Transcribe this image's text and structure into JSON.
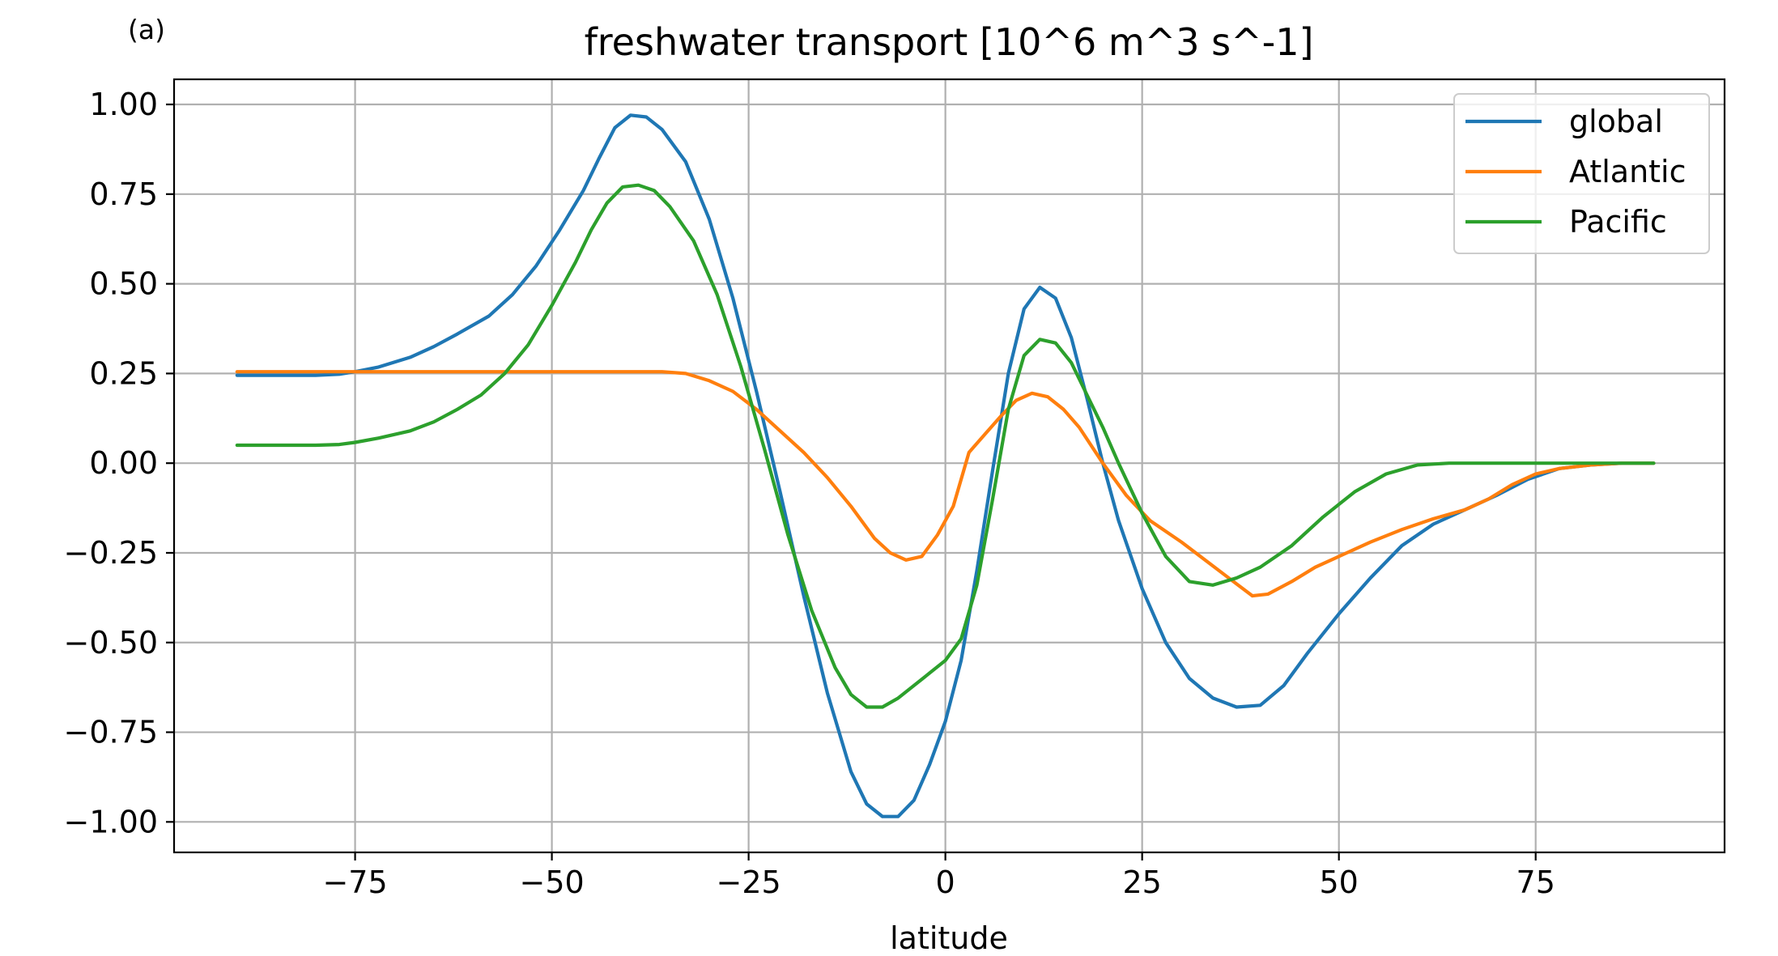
{
  "chart_data": {
    "type": "line",
    "panel_label": "(a)",
    "title": "freshwater transport [10^6 m^3 s^-1]",
    "xlabel": "latitude",
    "ylabel": "",
    "xlim": [
      -98,
      99
    ],
    "ylim": [
      -1.085,
      1.07
    ],
    "xticks": [
      -75,
      -50,
      -25,
      0,
      25,
      50,
      75
    ],
    "xtick_labels": [
      "−75",
      "−50",
      "−25",
      "0",
      "25",
      "50",
      "75"
    ],
    "yticks": [
      1.0,
      0.75,
      0.5,
      0.25,
      0.0,
      -0.25,
      -0.5,
      -0.75,
      -1.0
    ],
    "ytick_labels": [
      "1.00",
      "0.75",
      "0.50",
      "0.25",
      "0.00",
      "−0.25",
      "−0.50",
      "−0.75",
      "−1.00"
    ],
    "grid": true,
    "legend_position": "top-right",
    "series": [
      {
        "name": "global",
        "color": "#1f77b4",
        "points": [
          [
            -90,
            0.245
          ],
          [
            -85,
            0.245
          ],
          [
            -80,
            0.245
          ],
          [
            -77,
            0.248
          ],
          [
            -75,
            0.255
          ],
          [
            -72,
            0.268
          ],
          [
            -68,
            0.295
          ],
          [
            -65,
            0.325
          ],
          [
            -62,
            0.36
          ],
          [
            -58,
            0.41
          ],
          [
            -55,
            0.47
          ],
          [
            -52,
            0.55
          ],
          [
            -49,
            0.65
          ],
          [
            -46,
            0.76
          ],
          [
            -44,
            0.85
          ],
          [
            -42,
            0.935
          ],
          [
            -40,
            0.97
          ],
          [
            -38,
            0.965
          ],
          [
            -36,
            0.93
          ],
          [
            -33,
            0.84
          ],
          [
            -30,
            0.68
          ],
          [
            -27,
            0.46
          ],
          [
            -24,
            0.2
          ],
          [
            -21,
            -0.08
          ],
          [
            -18,
            -0.37
          ],
          [
            -15,
            -0.64
          ],
          [
            -12,
            -0.86
          ],
          [
            -10,
            -0.95
          ],
          [
            -8,
            -0.985
          ],
          [
            -6,
            -0.985
          ],
          [
            -4,
            -0.94
          ],
          [
            -2,
            -0.84
          ],
          [
            0,
            -0.72
          ],
          [
            2,
            -0.55
          ],
          [
            4,
            -0.3
          ],
          [
            6,
            -0.02
          ],
          [
            8,
            0.25
          ],
          [
            10,
            0.43
          ],
          [
            12,
            0.49
          ],
          [
            14,
            0.46
          ],
          [
            16,
            0.35
          ],
          [
            18,
            0.18
          ],
          [
            20,
            0.0
          ],
          [
            22,
            -0.16
          ],
          [
            25,
            -0.35
          ],
          [
            28,
            -0.5
          ],
          [
            31,
            -0.6
          ],
          [
            34,
            -0.655
          ],
          [
            37,
            -0.68
          ],
          [
            40,
            -0.675
          ],
          [
            43,
            -0.62
          ],
          [
            46,
            -0.53
          ],
          [
            50,
            -0.42
          ],
          [
            54,
            -0.32
          ],
          [
            58,
            -0.23
          ],
          [
            62,
            -0.17
          ],
          [
            66,
            -0.13
          ],
          [
            70,
            -0.09
          ],
          [
            74,
            -0.045
          ],
          [
            78,
            -0.015
          ],
          [
            82,
            -0.005
          ],
          [
            86,
            0.0
          ],
          [
            90,
            0.0
          ]
        ]
      },
      {
        "name": "Atlantic",
        "color": "#ff7f0e",
        "points": [
          [
            -90,
            0.255
          ],
          [
            -80,
            0.255
          ],
          [
            -70,
            0.255
          ],
          [
            -60,
            0.255
          ],
          [
            -50,
            0.255
          ],
          [
            -40,
            0.255
          ],
          [
            -36,
            0.255
          ],
          [
            -33,
            0.25
          ],
          [
            -30,
            0.23
          ],
          [
            -27,
            0.2
          ],
          [
            -24,
            0.15
          ],
          [
            -21,
            0.09
          ],
          [
            -18,
            0.03
          ],
          [
            -15,
            -0.04
          ],
          [
            -12,
            -0.12
          ],
          [
            -9,
            -0.21
          ],
          [
            -7,
            -0.25
          ],
          [
            -5,
            -0.27
          ],
          [
            -3,
            -0.26
          ],
          [
            -1,
            -0.2
          ],
          [
            1,
            -0.12
          ],
          [
            3,
            0.03
          ],
          [
            5,
            0.08
          ],
          [
            7,
            0.13
          ],
          [
            9,
            0.175
          ],
          [
            11,
            0.195
          ],
          [
            13,
            0.185
          ],
          [
            15,
            0.15
          ],
          [
            17,
            0.1
          ],
          [
            20,
            0.0
          ],
          [
            23,
            -0.09
          ],
          [
            26,
            -0.16
          ],
          [
            30,
            -0.22
          ],
          [
            33,
            -0.27
          ],
          [
            36,
            -0.32
          ],
          [
            39,
            -0.37
          ],
          [
            41,
            -0.365
          ],
          [
            44,
            -0.33
          ],
          [
            47,
            -0.29
          ],
          [
            50,
            -0.26
          ],
          [
            54,
            -0.22
          ],
          [
            58,
            -0.185
          ],
          [
            62,
            -0.155
          ],
          [
            66,
            -0.13
          ],
          [
            69,
            -0.1
          ],
          [
            72,
            -0.06
          ],
          [
            75,
            -0.03
          ],
          [
            78,
            -0.015
          ],
          [
            82,
            -0.005
          ],
          [
            86,
            0.0
          ],
          [
            90,
            0.0
          ]
        ]
      },
      {
        "name": "Pacific",
        "color": "#2ca02c",
        "points": [
          [
            -90,
            0.05
          ],
          [
            -85,
            0.05
          ],
          [
            -80,
            0.05
          ],
          [
            -77,
            0.052
          ],
          [
            -75,
            0.058
          ],
          [
            -72,
            0.07
          ],
          [
            -68,
            0.09
          ],
          [
            -65,
            0.115
          ],
          [
            -62,
            0.15
          ],
          [
            -59,
            0.19
          ],
          [
            -56,
            0.25
          ],
          [
            -53,
            0.33
          ],
          [
            -50,
            0.44
          ],
          [
            -47,
            0.56
          ],
          [
            -45,
            0.65
          ],
          [
            -43,
            0.725
          ],
          [
            -41,
            0.77
          ],
          [
            -39,
            0.775
          ],
          [
            -37,
            0.76
          ],
          [
            -35,
            0.715
          ],
          [
            -32,
            0.62
          ],
          [
            -29,
            0.47
          ],
          [
            -26,
            0.27
          ],
          [
            -23,
            0.04
          ],
          [
            -20,
            -0.2
          ],
          [
            -17,
            -0.41
          ],
          [
            -14,
            -0.57
          ],
          [
            -12,
            -0.645
          ],
          [
            -10,
            -0.68
          ],
          [
            -8,
            -0.68
          ],
          [
            -6,
            -0.655
          ],
          [
            -4,
            -0.62
          ],
          [
            -2,
            -0.585
          ],
          [
            0,
            -0.55
          ],
          [
            2,
            -0.49
          ],
          [
            4,
            -0.34
          ],
          [
            6,
            -0.1
          ],
          [
            8,
            0.15
          ],
          [
            10,
            0.3
          ],
          [
            12,
            0.345
          ],
          [
            14,
            0.335
          ],
          [
            16,
            0.28
          ],
          [
            18,
            0.19
          ],
          [
            20,
            0.1
          ],
          [
            22,
            0.0
          ],
          [
            25,
            -0.14
          ],
          [
            28,
            -0.26
          ],
          [
            31,
            -0.33
          ],
          [
            34,
            -0.34
          ],
          [
            37,
            -0.32
          ],
          [
            40,
            -0.29
          ],
          [
            44,
            -0.23
          ],
          [
            48,
            -0.15
          ],
          [
            52,
            -0.08
          ],
          [
            56,
            -0.03
          ],
          [
            60,
            -0.005
          ],
          [
            64,
            0.0
          ],
          [
            70,
            0.0
          ],
          [
            80,
            0.0
          ],
          [
            90,
            0.0
          ]
        ]
      }
    ]
  }
}
